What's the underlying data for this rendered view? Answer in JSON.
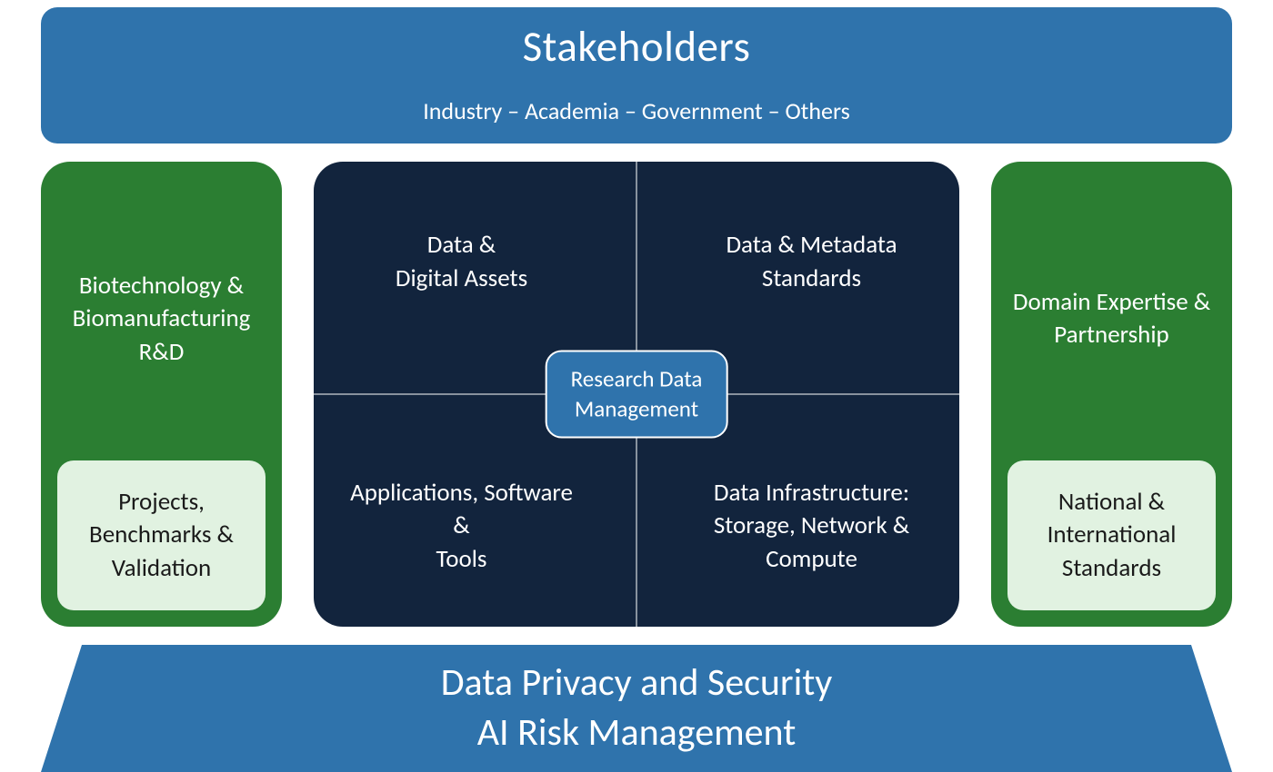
{
  "colors": {
    "blue": "#2f73ac",
    "navy": "#12243d",
    "green": "#2b7e32",
    "mint": "#e1f2e1",
    "mint_text": "#1a1a1a",
    "white": "#ffffff",
    "badge_border": "#ffffff",
    "grid_line": "#ffffff"
  },
  "top": {
    "title": "Stakeholders",
    "subtitle": "Industry – Academia – Government – Others"
  },
  "left": {
    "title": "Biotechnology & Biomanufacturing R&D",
    "sub": "Projects, Benchmarks & Validation"
  },
  "right": {
    "title": "Domain Expertise & Partnership",
    "sub": "National & International Standards"
  },
  "center": {
    "q1": "Data &\nDigital Assets",
    "q2": "Applications, Software &\nTools",
    "q3": "Data & Metadata Standards",
    "q4": "Data Infrastructure: Storage, Network & Compute",
    "badge": "Research Data\nManagement"
  },
  "bottom": {
    "line1": "Data Privacy and Security",
    "line2": "AI Risk Management"
  }
}
